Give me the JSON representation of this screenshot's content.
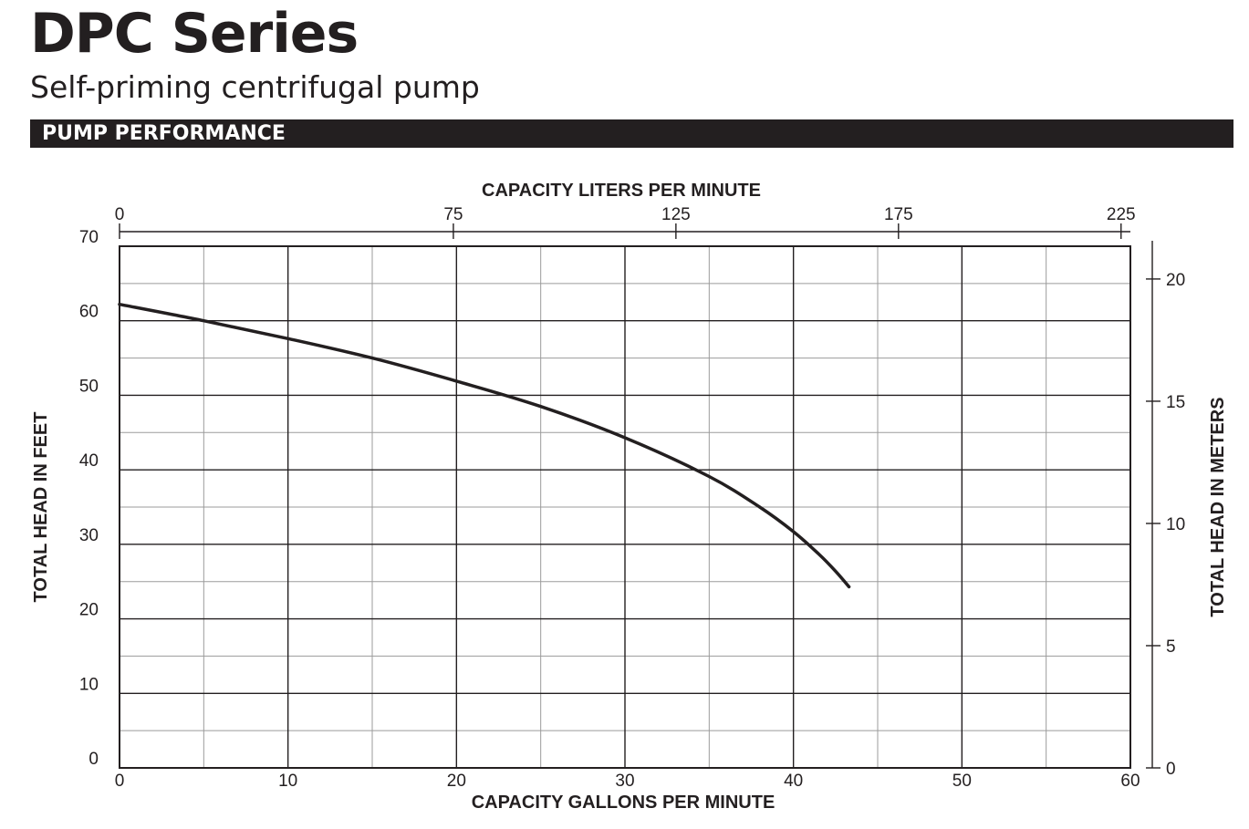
{
  "header": {
    "title": "DPC Series",
    "subtitle": "Self-priming centrifugal pump",
    "section": "PUMP PERFORMANCE"
  },
  "colors": {
    "ink": "#231f20",
    "grid_major": "#231f20",
    "grid_minor": "#9b9b9b",
    "background": "#ffffff"
  },
  "chart_data": {
    "type": "line",
    "xlabel": "CAPACITY GALLONS PER MINUTE",
    "ylabel": "TOTAL HEAD IN FEET",
    "x2label": "CAPACITY LITERS PER MINUTE",
    "y2label": "TOTAL HEAD IN METERS",
    "xlim": [
      0,
      60
    ],
    "ylim": [
      0,
      70
    ],
    "x2lim": [
      0,
      227.1
    ],
    "y2lim": [
      0,
      21.34
    ],
    "x_ticks": [
      0,
      10,
      20,
      30,
      40,
      50,
      60
    ],
    "y_ticks": [
      0,
      10,
      20,
      30,
      40,
      50,
      60,
      70
    ],
    "x2_ticks": [
      0,
      75,
      125,
      175,
      225
    ],
    "y2_ticks": [
      0,
      5,
      10,
      15,
      20
    ],
    "grid": true,
    "legend": "none",
    "series": [
      {
        "x": [
          0,
          5,
          10,
          15,
          20,
          25,
          30,
          35,
          38,
          40,
          41.5,
          42.5,
          43.3
        ],
        "y": [
          62.2,
          60.0,
          57.6,
          55.0,
          51.9,
          48.5,
          44.3,
          39.1,
          35.0,
          31.7,
          28.7,
          26.4,
          24.3
        ]
      }
    ]
  }
}
